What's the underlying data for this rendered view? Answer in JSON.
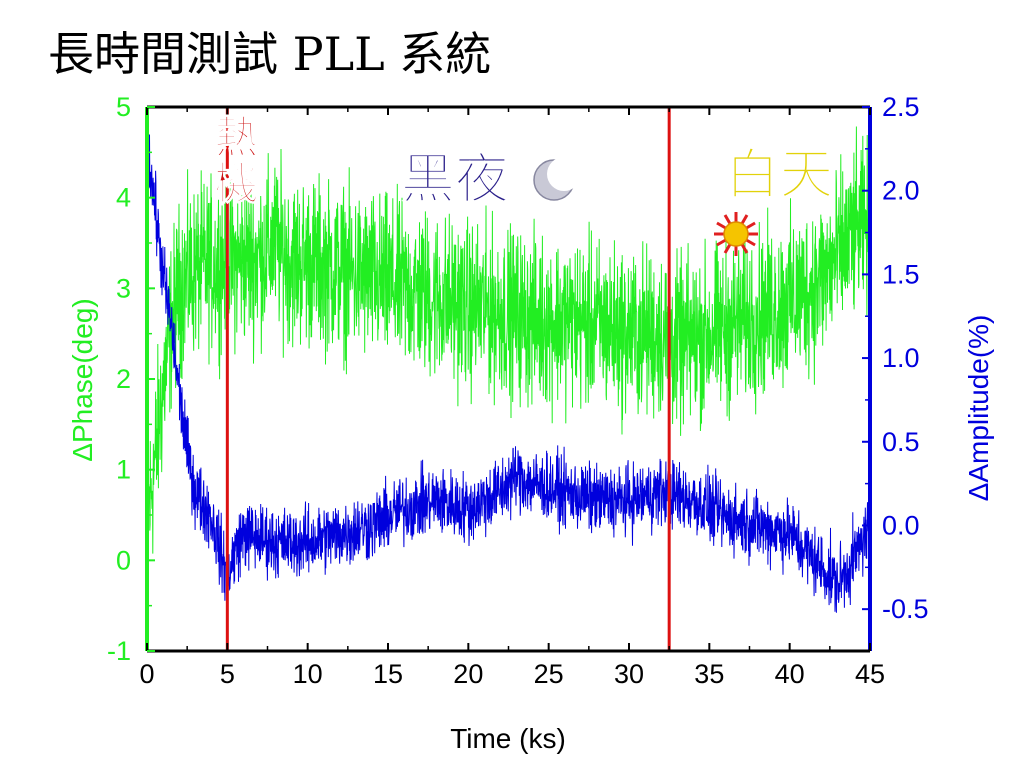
{
  "title": "長時間測試 PLL 系統",
  "chart_data": {
    "type": "line",
    "xlabel": "Time (ks)",
    "ylabel_left": "ΔPhase(deg)",
    "ylabel_right": "ΔAmplitude(%)",
    "xlim": [
      0,
      45
    ],
    "ylim_left": [
      -1,
      5
    ],
    "ylim_right": [
      -0.75,
      2.5
    ],
    "x_ticks": [
      "0",
      "5",
      "10",
      "15",
      "20",
      "25",
      "30",
      "35",
      "40",
      "45"
    ],
    "y_left_ticks": [
      "-1",
      "0",
      "1",
      "2",
      "3",
      "4",
      "5"
    ],
    "y_right_ticks": [
      "-0.5",
      "0.0",
      "0.5",
      "1.0",
      "1.5",
      "2.0",
      "2.5"
    ],
    "grid": false,
    "colors": {
      "phase": "#22ee22",
      "amplitude": "#0000dd",
      "marker": "#dd1111"
    },
    "vlines": [
      5,
      32.5
    ],
    "annotations": [
      {
        "text": "熱\n機",
        "x": 4.2,
        "y": 4.5,
        "color": "#cc1111"
      },
      {
        "text": "黑夜",
        "x": 15.8,
        "y": 4.0,
        "color": "#2a1f8a"
      },
      {
        "text": "白天",
        "x": 36.0,
        "y": 4.05,
        "color": "#e2d20a"
      }
    ],
    "series": [
      {
        "axis": "left",
        "noise": 0.45,
        "x": [
          0,
          0.5,
          1,
          1.5,
          2,
          3,
          4,
          5,
          6,
          7,
          8,
          9,
          10,
          12,
          14,
          16,
          18,
          20,
          22,
          24,
          26,
          28,
          30,
          32,
          33,
          34,
          36,
          38,
          40,
          42,
          44,
          45
        ],
        "y": [
          0.4,
          1.1,
          1.9,
          2.6,
          3.0,
          3.2,
          3.25,
          3.3,
          3.3,
          3.35,
          3.5,
          3.3,
          3.3,
          3.2,
          3.1,
          3.0,
          2.9,
          2.8,
          2.75,
          2.65,
          2.65,
          2.6,
          2.5,
          2.5,
          2.35,
          2.45,
          2.55,
          2.7,
          2.85,
          3.1,
          3.6,
          3.7
        ]
      },
      {
        "axis": "right",
        "noise": 0.1,
        "x": [
          0,
          0.5,
          1,
          1.5,
          2,
          2.5,
          3,
          4,
          4.7,
          5,
          5.5,
          6,
          8,
          10,
          12,
          14,
          15,
          16,
          18,
          20,
          22,
          23,
          24,
          26,
          28,
          30,
          32,
          34,
          36,
          38,
          40,
          42,
          43,
          44,
          44.5,
          45
        ],
        "y": [
          2.3,
          1.9,
          1.5,
          1.2,
          0.8,
          0.45,
          0.2,
          0.05,
          -0.2,
          -0.3,
          -0.15,
          -0.05,
          -0.1,
          -0.1,
          -0.05,
          0.0,
          0.05,
          0.1,
          0.15,
          0.1,
          0.2,
          0.3,
          0.25,
          0.2,
          0.15,
          0.15,
          0.2,
          0.15,
          0.05,
          0.0,
          -0.05,
          -0.25,
          -0.35,
          -0.2,
          -0.1,
          0.0
        ]
      }
    ]
  }
}
